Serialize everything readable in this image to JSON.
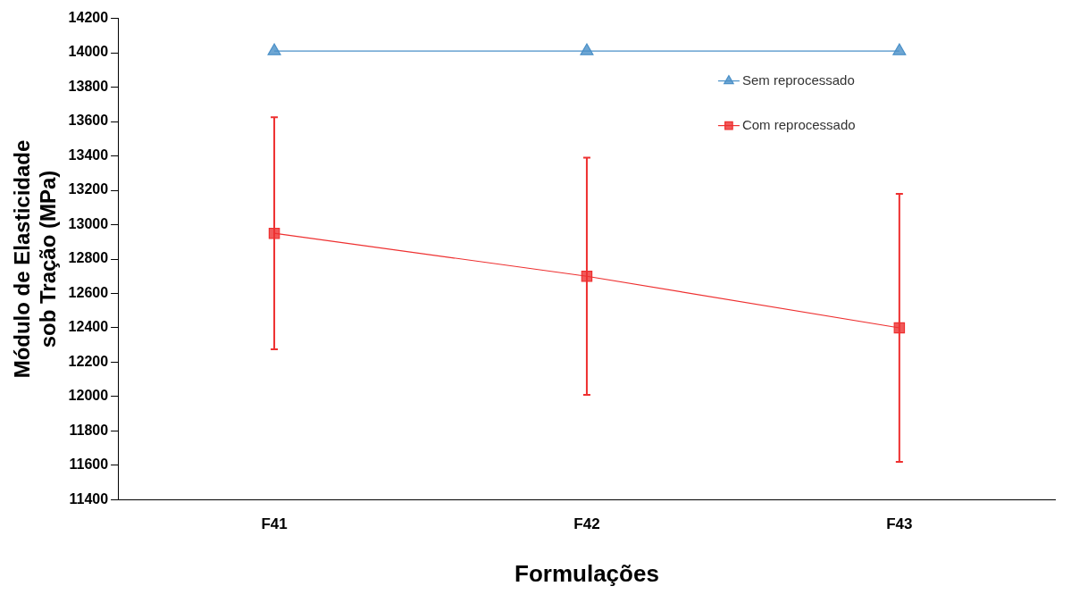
{
  "chart_data": {
    "type": "line",
    "xlabel": "Formulações",
    "ylabel": "Módulo de Elasticidade\nsob Tração (MPa)",
    "categories": [
      "F41",
      "F42",
      "F43"
    ],
    "series": [
      {
        "name": "Sem reprocessado",
        "color": "#4a90c8",
        "marker": "triangle",
        "values": [
          14010,
          14010,
          14010
        ]
      },
      {
        "name": "Com reprocessado",
        "color": "#ee3030",
        "marker": "square",
        "values": [
          12950,
          12700,
          12400
        ],
        "errors": [
          675,
          690,
          780
        ]
      }
    ],
    "ylim": [
      11400,
      14200
    ],
    "yticks": [
      11400,
      11600,
      11800,
      12000,
      12200,
      12400,
      12600,
      12800,
      13000,
      13200,
      13400,
      13600,
      13800,
      14000,
      14200
    ],
    "grid": false,
    "legend": "top right"
  }
}
